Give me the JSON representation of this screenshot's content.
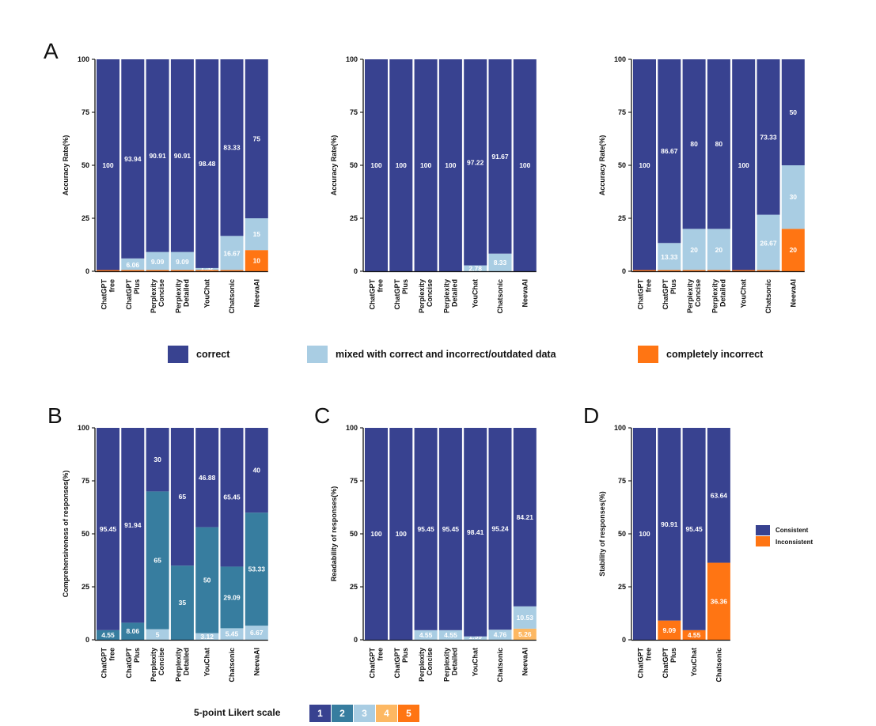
{
  "colors": {
    "l1": "#384290",
    "l2": "#377D9F",
    "l3": "#A9CDE3",
    "l4": "#FDB863",
    "l5": "#FF7513"
  },
  "panels": {
    "A": "A",
    "B": "B",
    "C": "C",
    "D": "D"
  },
  "legend_accuracy": [
    {
      "label": "correct",
      "color": "#384290"
    },
    {
      "label": "mixed with correct and incorrect/outdated data",
      "color": "#A9CDE3"
    },
    {
      "label": "completely incorrect",
      "color": "#FF7513"
    }
  ],
  "legend_stability": [
    {
      "label": "Consistent",
      "color": "#384290"
    },
    {
      "label": "Inconsistent",
      "color": "#FF7513"
    }
  ],
  "likert": {
    "title": "5-point Likert scale",
    "levels": [
      "1",
      "2",
      "3",
      "4",
      "5"
    ]
  },
  "chart_data": [
    {
      "panel": "A",
      "type": "bar",
      "stacked": true,
      "ylabel": "Accuracy Rate(%)",
      "ylim": [
        0,
        100
      ],
      "yticks": [
        0,
        25,
        50,
        75,
        100
      ],
      "categories": [
        "ChatGPT free",
        "ChatGPT Plus",
        "Perplexity Concise",
        "Perplexity Detailed",
        "YouChat",
        "Chatsonic",
        "NeevaAI"
      ],
      "series": [
        {
          "name": "completely incorrect",
          "color": "#FF7513",
          "values": [
            0,
            0,
            0,
            0,
            0,
            0,
            10
          ],
          "labels": [
            "",
            "",
            "",
            "",
            "",
            "",
            "10"
          ]
        },
        {
          "name": "mixed with correct and incorrect/outdated data",
          "color": "#A9CDE3",
          "values": [
            0,
            6.06,
            9.09,
            9.09,
            1.52,
            16.67,
            15
          ],
          "labels": [
            "",
            "6.06",
            "9.09",
            "9.09",
            "1.52",
            "16.67",
            "15"
          ]
        },
        {
          "name": "correct",
          "color": "#384290",
          "values": [
            100,
            93.94,
            90.91,
            90.91,
            98.48,
            83.33,
            75
          ],
          "labels": [
            "100",
            "93.94",
            "90.91",
            "90.91",
            "98.48",
            "83.33",
            "75"
          ]
        }
      ]
    },
    {
      "panel": "A2",
      "type": "bar",
      "stacked": true,
      "ylabel": "Accuracy Rate(%)",
      "ylim": [
        0,
        100
      ],
      "yticks": [
        0,
        25,
        50,
        75,
        100
      ],
      "categories": [
        "ChatGPT free",
        "ChatGPT Plus",
        "Perplexity Concise",
        "Perplexity Detailed",
        "YouChat",
        "Chatsonic",
        "NeevaAI"
      ],
      "series": [
        {
          "name": "mixed with correct and incorrect/outdated data",
          "color": "#A9CDE3",
          "values": [
            0,
            0,
            0,
            0,
            2.78,
            8.33,
            0
          ],
          "labels": [
            "",
            "",
            "",
            "",
            "2.78",
            "8.33",
            ""
          ]
        },
        {
          "name": "correct",
          "color": "#384290",
          "values": [
            100,
            100,
            100,
            100,
            97.22,
            91.67,
            100
          ],
          "labels": [
            "100",
            "100",
            "100",
            "100",
            "97.22",
            "91.67",
            "100"
          ]
        }
      ]
    },
    {
      "panel": "A3",
      "type": "bar",
      "stacked": true,
      "ylabel": "Accuracy Rate(%)",
      "ylim": [
        0,
        100
      ],
      "yticks": [
        0,
        25,
        50,
        75,
        100
      ],
      "categories": [
        "ChatGPT free",
        "ChatGPT Plus",
        "Perplexity Concise",
        "Perplexity Detailed",
        "YouChat",
        "Chatsonic",
        "NeevaAI"
      ],
      "series": [
        {
          "name": "completely incorrect",
          "color": "#FF7513",
          "values": [
            0,
            0,
            0,
            0,
            0,
            0,
            20
          ],
          "labels": [
            "",
            "",
            "",
            "",
            "",
            "",
            "20"
          ]
        },
        {
          "name": "mixed with correct and incorrect/outdated data",
          "color": "#A9CDE3",
          "values": [
            0,
            13.33,
            20,
            20,
            0,
            26.67,
            30
          ],
          "labels": [
            "",
            "13.33",
            "20",
            "20",
            "",
            "26.67",
            "30"
          ]
        },
        {
          "name": "correct",
          "color": "#384290",
          "values": [
            100,
            86.67,
            80,
            80,
            100,
            73.33,
            50
          ],
          "labels": [
            "100",
            "86.67",
            "80",
            "80",
            "100",
            "73.33",
            "50"
          ]
        }
      ]
    },
    {
      "panel": "B",
      "type": "bar",
      "stacked": true,
      "ylabel": "Comprehensiveness of responses(%)",
      "ylim": [
        0,
        100
      ],
      "yticks": [
        0,
        25,
        50,
        75,
        100
      ],
      "categories": [
        "ChatGPT free",
        "ChatGPT Plus",
        "Perplexity Concise",
        "Perplexity Detailed",
        "YouChat",
        "Chatsonic",
        "NeevaAI"
      ],
      "series": [
        {
          "name": "3",
          "color": "#A9CDE3",
          "values": [
            0,
            0,
            5,
            0,
            3.12,
            5.45,
            6.67
          ],
          "labels": [
            "",
            "",
            "5",
            "",
            "3.12",
            "5.45",
            "6.67"
          ]
        },
        {
          "name": "2",
          "color": "#377D9F",
          "values": [
            4.55,
            8.06,
            65,
            35,
            50,
            29.09,
            53.33
          ],
          "labels": [
            "4.55",
            "8.06",
            "65",
            "35",
            "50",
            "29.09",
            "53.33"
          ]
        },
        {
          "name": "1",
          "color": "#384290",
          "values": [
            95.45,
            91.94,
            30,
            65,
            46.88,
            65.45,
            40
          ],
          "labels": [
            "95.45",
            "91.94",
            "30",
            "65",
            "46.88",
            "65.45",
            "40"
          ]
        }
      ]
    },
    {
      "panel": "C",
      "type": "bar",
      "stacked": true,
      "ylabel": "Readability of responses(%)",
      "ylim": [
        0,
        100
      ],
      "yticks": [
        0,
        25,
        50,
        75,
        100
      ],
      "categories": [
        "ChatGPT free",
        "ChatGPT Plus",
        "Perplexity Concise",
        "Perplexity Detailed",
        "YouChat",
        "Chatsonic",
        "NeevaAI"
      ],
      "series": [
        {
          "name": "4",
          "color": "#FDB863",
          "values": [
            0,
            0,
            0,
            0,
            0,
            0,
            5.26
          ],
          "labels": [
            "",
            "",
            "",
            "",
            "",
            "",
            "5.26"
          ]
        },
        {
          "name": "3",
          "color": "#A9CDE3",
          "values": [
            0,
            0,
            4.55,
            4.55,
            1.59,
            4.76,
            10.53
          ],
          "labels": [
            "",
            "",
            "4.55",
            "4.55",
            "1.59",
            "4.76",
            "10.53"
          ]
        },
        {
          "name": "1",
          "color": "#384290",
          "values": [
            100,
            100,
            95.45,
            95.45,
            98.41,
            95.24,
            84.21
          ],
          "labels": [
            "100",
            "100",
            "95.45",
            "95.45",
            "98.41",
            "95.24",
            "84.21"
          ]
        }
      ]
    },
    {
      "panel": "D",
      "type": "bar",
      "stacked": true,
      "ylabel": "Stability of responses(%)",
      "ylim": [
        0,
        100
      ],
      "yticks": [
        0,
        25,
        50,
        75,
        100
      ],
      "categories": [
        "ChatGPT free",
        "ChatGPT Plus",
        "YouChat",
        "Chatsonic"
      ],
      "series": [
        {
          "name": "Inconsistent",
          "color": "#FF7513",
          "values": [
            0,
            9.09,
            4.55,
            36.36
          ],
          "labels": [
            "",
            "9.09",
            "4.55",
            "36.36"
          ]
        },
        {
          "name": "Consistent",
          "color": "#384290",
          "values": [
            100,
            90.91,
            95.45,
            63.64
          ],
          "labels": [
            "100",
            "90.91",
            "95.45",
            "63.64"
          ]
        }
      ]
    }
  ]
}
